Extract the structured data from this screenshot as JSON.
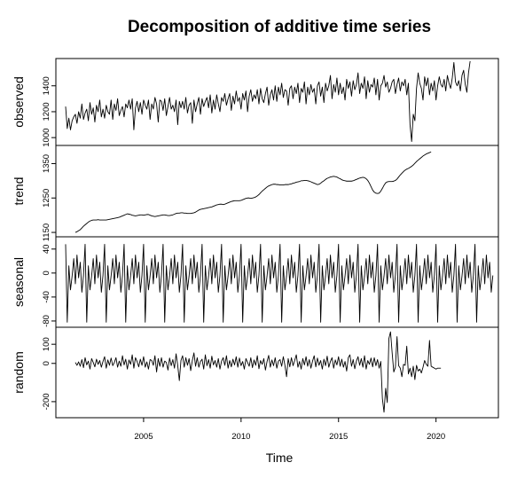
{
  "chart_data": {
    "type": "line",
    "title": "Decomposition of additive time series",
    "xlabel": "Time",
    "x_ticks": [
      "2005",
      "2010",
      "2015",
      "2020"
    ],
    "x_start": 2001.0,
    "frequency": 12,
    "xlim": [
      2000.5,
      2023.2
    ],
    "grid": false,
    "panels": [
      {
        "key": "observed",
        "ylabel": "observed",
        "ylim": [
          960,
          1590
        ],
        "y_ticks": [
          "1000",
          "1200",
          "1400"
        ],
        "tick_values": [
          1000,
          1200,
          1400
        ],
        "start_offset": 0,
        "values": [
          1240,
          1070,
          1150,
          1060,
          1130,
          1160,
          1180,
          1110,
          1200,
          1150,
          1260,
          1140,
          1190,
          1220,
          1130,
          1270,
          1180,
          1230,
          1120,
          1250,
          1200,
          1290,
          1160,
          1220,
          1150,
          1250,
          1200,
          1180,
          1290,
          1140,
          1260,
          1210,
          1300,
          1170,
          1210,
          1240,
          1160,
          1260,
          1230,
          1290,
          1220,
          1300,
          1060,
          1230,
          1280,
          1200,
          1270,
          1180,
          1290,
          1250,
          1220,
          1290,
          1140,
          1260,
          1220,
          1310,
          1260,
          1120,
          1290,
          1280,
          1210,
          1300,
          1170,
          1240,
          1310,
          1220,
          1250,
          1200,
          1290,
          1100,
          1280,
          1230,
          1280,
          1220,
          1310,
          1190,
          1250,
          1270,
          1110,
          1290,
          1200,
          1260,
          1310,
          1180,
          1300,
          1240,
          1280,
          1310,
          1230,
          1330,
          1190,
          1290,
          1220,
          1330,
          1260,
          1200,
          1310,
          1280,
          1340,
          1250,
          1300,
          1340,
          1210,
          1320,
          1260,
          1360,
          1280,
          1310,
          1220,
          1340,
          1290,
          1360,
          1200,
          1320,
          1370,
          1280,
          1330,
          1300,
          1370,
          1260,
          1380,
          1300,
          1270,
          1340,
          1390,
          1250,
          1330,
          1370,
          1290,
          1400,
          1280,
          1390,
          1330,
          1420,
          1310,
          1370,
          1360,
          1250,
          1380,
          1400,
          1300,
          1390,
          1340,
          1420,
          1270,
          1380,
          1350,
          1430,
          1260,
          1390,
          1330,
          1410,
          1350,
          1380,
          1260,
          1400,
          1430,
          1320,
          1390,
          1270,
          1420,
          1360,
          1400,
          1480,
          1300,
          1410,
          1350,
          1460,
          1330,
          1420,
          1340,
          1390,
          1290,
          1450,
          1380,
          1430,
          1320,
          1440,
          1370,
          1410,
          1500,
          1340,
          1420,
          1380,
          1470,
          1300,
          1440,
          1350,
          1410,
          1390,
          1460,
          1330,
          1450,
          1290,
          1400,
          1420,
          1480,
          1390,
          1430,
          1350,
          1380,
          1430,
          1450,
          1340,
          1410,
          1460,
          1360,
          1430,
          1400,
          1450,
          1330,
          1420,
          1100,
          970,
          1180,
          1130,
          1380,
          1500,
          1420,
          1380,
          1290,
          1470,
          1400,
          1460,
          1330,
          1420,
          1360,
          1440,
          1290,
          1400,
          1470,
          1410,
          1390,
          1450,
          1360,
          1480,
          1420,
          1380,
          1460,
          1580,
          1430,
          1400,
          1440,
          1360,
          1480,
          1520,
          1410,
          1350,
          1500,
          1590
        ]
      },
      {
        "key": "trend",
        "ylabel": "trend",
        "ylim": [
          1145,
          1395
        ],
        "y_ticks": [
          "1150",
          "1250",
          "1350"
        ],
        "tick_values": [
          1150,
          1250,
          1350
        ],
        "start_offset": 6,
        "values": [
          1150,
          1152,
          1155,
          1158,
          1163,
          1168,
          1172,
          1176,
          1180,
          1183,
          1185,
          1186,
          1186,
          1186,
          1187,
          1186,
          1186,
          1186,
          1186,
          1186,
          1187,
          1188,
          1189,
          1190,
          1191,
          1192,
          1193,
          1194,
          1196,
          1198,
          1200,
          1202,
          1204,
          1203,
          1202,
          1200,
          1199,
          1198,
          1199,
          1200,
          1201,
          1201,
          1200,
          1201,
          1202,
          1202,
          1200,
          1198,
          1197,
          1196,
          1197,
          1198,
          1199,
          1200,
          1201,
          1201,
          1200,
          1199,
          1199,
          1200,
          1201,
          1203,
          1205,
          1206,
          1206,
          1207,
          1207,
          1206,
          1206,
          1205,
          1205,
          1205,
          1206,
          1207,
          1209,
          1212,
          1215,
          1217,
          1218,
          1219,
          1220,
          1221,
          1222,
          1223,
          1224,
          1226,
          1228,
          1230,
          1231,
          1232,
          1232,
          1231,
          1232,
          1234,
          1236,
          1238,
          1240,
          1241,
          1242,
          1242,
          1242,
          1242,
          1243,
          1245,
          1247,
          1249,
          1250,
          1250,
          1249,
          1250,
          1251,
          1253,
          1256,
          1260,
          1265,
          1270,
          1274,
          1278,
          1282,
          1285,
          1287,
          1289,
          1290,
          1290,
          1289,
          1289,
          1288,
          1288,
          1288,
          1289,
          1289,
          1289,
          1290,
          1291,
          1293,
          1294,
          1296,
          1297,
          1298,
          1300,
          1300,
          1301,
          1301,
          1300,
          1299,
          1297,
          1295,
          1293,
          1291,
          1289,
          1290,
          1293,
          1297,
          1300,
          1304,
          1307,
          1309,
          1311,
          1312,
          1313,
          1312,
          1311,
          1308,
          1306,
          1303,
          1301,
          1300,
          1299,
          1299,
          1299,
          1299,
          1300,
          1302,
          1304,
          1306,
          1308,
          1309,
          1310,
          1309,
          1306,
          1301,
          1293,
          1283,
          1273,
          1267,
          1264,
          1263,
          1264,
          1270,
          1278,
          1287,
          1294,
          1297,
          1298,
          1298,
          1298,
          1299,
          1301,
          1305,
          1311,
          1317,
          1322,
          1327,
          1331,
          1334,
          1336,
          1339,
          1342,
          1346,
          1351,
          1356,
          1360,
          1364,
          1368,
          1372,
          1375,
          1378,
          1380,
          1382,
          1384
        ]
      },
      {
        "key": "seasonal",
        "ylabel": "seasonal",
        "ylim": [
          -86,
          56
        ],
        "y_ticks": [
          "-80",
          "-40",
          "0",
          "40"
        ],
        "tick_values": [
          -80,
          -40,
          0,
          40
        ],
        "start_offset": 0,
        "pattern": [
          48,
          -82,
          12,
          -28,
          -5,
          24,
          -18,
          30,
          -8,
          18,
          -32,
          -4
        ],
        "cycles": 22
      },
      {
        "key": "random",
        "ylabel": "random",
        "ylim": [
          -270,
          175
        ],
        "y_ticks": [
          "-200",
          "0",
          "100"
        ],
        "tick_values": [
          -200,
          0,
          100
        ],
        "start_offset": 6,
        "values": [
          5,
          -10,
          8,
          -15,
          20,
          -22,
          30,
          -8,
          12,
          -30,
          25,
          5,
          -18,
          22,
          -5,
          15,
          -20,
          10,
          35,
          -25,
          18,
          -10,
          28,
          -12,
          5,
          30,
          -20,
          12,
          -15,
          40,
          -8,
          22,
          -30,
          18,
          -5,
          45,
          -25,
          30,
          10,
          -18,
          22,
          -10,
          35,
          -20,
          8,
          -30,
          20,
          15,
          -10,
          40,
          -45,
          25,
          -15,
          30,
          -20,
          12,
          5,
          -35,
          28,
          -12,
          20,
          -25,
          50,
          -10,
          -90,
          15,
          40,
          -20,
          30,
          -10,
          25,
          -38,
          15,
          55,
          -15,
          30,
          -20,
          10,
          22,
          -30,
          45,
          -12,
          20,
          -25,
          38,
          -8,
          15,
          -20,
          25,
          -30,
          12,
          30,
          -10,
          40,
          -25,
          15,
          -18,
          22,
          -8,
          35,
          -20,
          28,
          -12,
          10,
          -30,
          25,
          5,
          -15,
          30,
          -22,
          18,
          -10,
          40,
          -28,
          15,
          -5,
          25,
          -35,
          10,
          42,
          -20,
          18,
          -12,
          30,
          -25,
          12,
          20,
          -15,
          35,
          -10,
          -70,
          25,
          -18,
          30,
          -12,
          15,
          45,
          -20,
          10,
          -30,
          25,
          -8,
          35,
          -15,
          20,
          -25,
          12,
          40,
          -18,
          28,
          -10,
          15,
          -30,
          22,
          -12,
          38,
          -20,
          10,
          30,
          -25,
          18,
          -8,
          35,
          -15,
          22,
          -20,
          10,
          -40,
          30,
          45,
          -15,
          20,
          -28,
          12,
          35,
          -10,
          25,
          -20,
          40,
          -30,
          15,
          -5,
          28,
          -18,
          30,
          -12,
          20,
          -25,
          10,
          -185,
          -255,
          -130,
          -205,
          130,
          165,
          55,
          -45,
          -20,
          140,
          -12,
          -25,
          -70,
          -5,
          -10,
          90,
          -55,
          -25,
          -70,
          -15,
          -85,
          -10,
          -40,
          -30,
          -50,
          -20,
          15,
          -5,
          -15,
          120,
          -15,
          -20,
          -25,
          -30,
          -25,
          -25,
          -25
        ]
      }
    ]
  }
}
